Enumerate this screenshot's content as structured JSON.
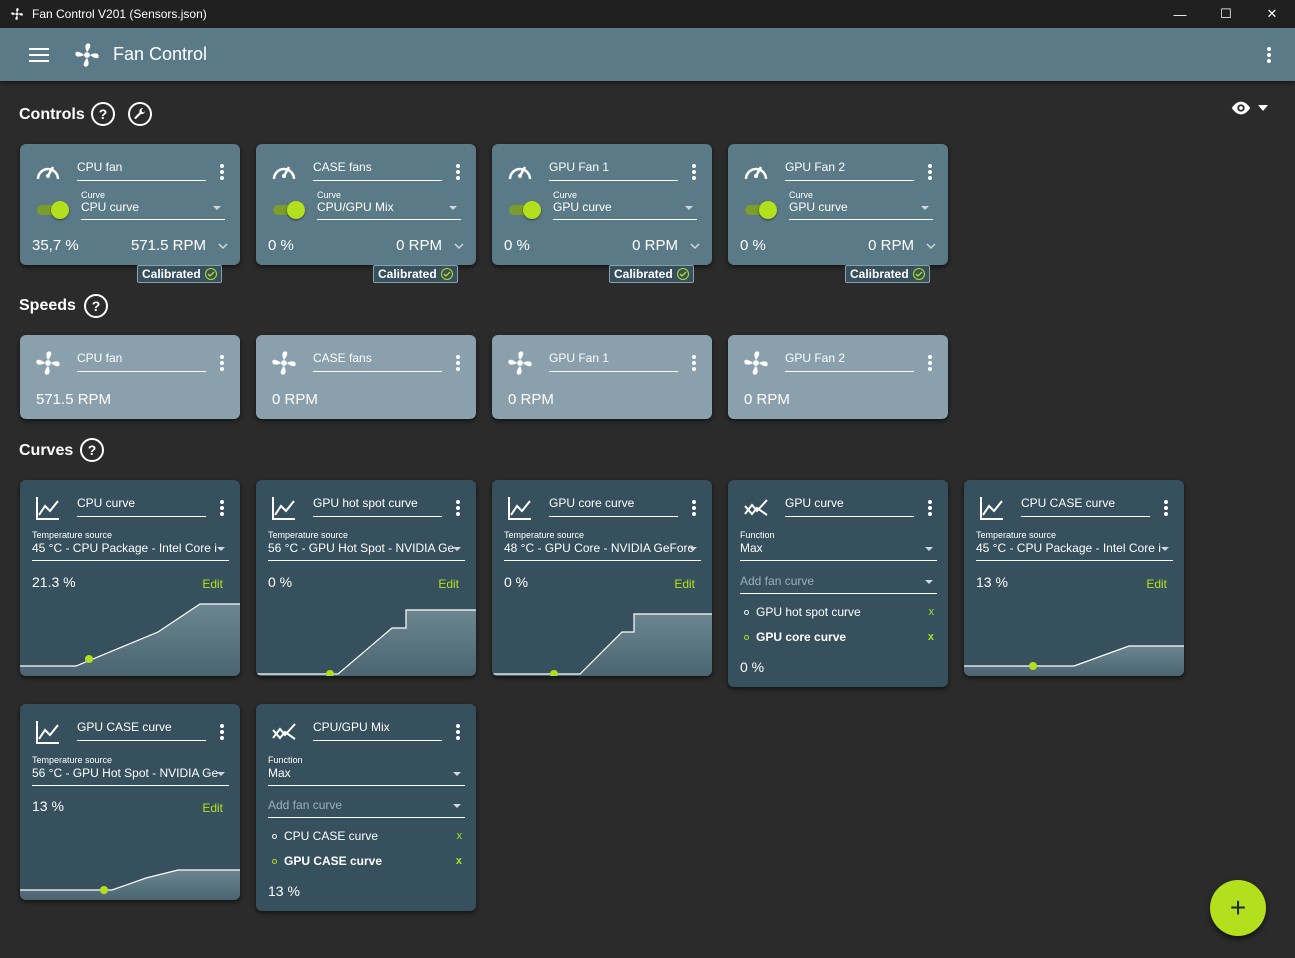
{
  "window": {
    "title": "Fan Control V201 (Sensors.json)",
    "minimize": "—",
    "maximize": "☐",
    "close": "✕"
  },
  "appbar": {
    "title": "Fan Control",
    "menu_icon": "hamburger-icon",
    "more_icon": "more-vertical-icon"
  },
  "sections": {
    "controls": "Controls",
    "speeds": "Speeds",
    "curves": "Curves",
    "help": "?"
  },
  "colors": {
    "accent": "#b3e01c",
    "appbar": "#5b7a88",
    "control_card": "#5b7a88",
    "speed_card": "#8aa1ad",
    "curve_card": "#37505d",
    "background": "#2b2b2b"
  },
  "controls": [
    {
      "name": "CPU fan",
      "curve_label": "Curve",
      "curve": "CPU curve",
      "percent": "35,7 %",
      "rpm": "571.5 RPM",
      "badge": "Calibrated",
      "enabled": true
    },
    {
      "name": "CASE fans",
      "curve_label": "Curve",
      "curve": "CPU/GPU Mix",
      "percent": "0 %",
      "rpm": "0 RPM",
      "badge": "Calibrated",
      "enabled": true
    },
    {
      "name": "GPU Fan 1",
      "curve_label": "Curve",
      "curve": "GPU curve",
      "percent": "0 %",
      "rpm": "0 RPM",
      "badge": "Calibrated",
      "enabled": true
    },
    {
      "name": "GPU Fan 2",
      "curve_label": "Curve",
      "curve": "GPU curve",
      "percent": "0 %",
      "rpm": "0 RPM",
      "badge": "Calibrated",
      "enabled": true
    }
  ],
  "speeds": [
    {
      "name": "CPU fan",
      "rpm": "571.5 RPM"
    },
    {
      "name": "CASE fans",
      "rpm": "0 RPM"
    },
    {
      "name": "GPU Fan 1",
      "rpm": "0 RPM"
    },
    {
      "name": "GPU Fan 2",
      "rpm": "0 RPM"
    }
  ],
  "curves": {
    "cpu_curve": {
      "name": "CPU curve",
      "source_label": "Temperature source",
      "source": "45 °C - CPU Package - Intel Core i",
      "percent": "21.3 %",
      "edit": "Edit"
    },
    "gpu_hot_spot_curve": {
      "name": "GPU hot spot curve",
      "source_label": "Temperature source",
      "source": "56 °C - GPU Hot Spot - NVIDIA Ge",
      "percent": "0 %",
      "edit": "Edit"
    },
    "gpu_core_curve": {
      "name": "GPU core curve",
      "source_label": "Temperature source",
      "source": "48 °C - GPU Core - NVIDIA GeForc",
      "percent": "0 %",
      "edit": "Edit"
    },
    "gpu_curve": {
      "name": "GPU curve",
      "function_label": "Function",
      "function": "Max",
      "add_placeholder": "Add fan curve",
      "items": [
        "GPU hot spot curve",
        "GPU core curve"
      ],
      "remove": "x",
      "percent": "0 %"
    },
    "cpu_case_curve": {
      "name": "CPU CASE curve",
      "source_label": "Temperature source",
      "source": "45 °C - CPU Package - Intel Core i",
      "percent": "13 %",
      "edit": "Edit"
    },
    "gpu_case_curve": {
      "name": "GPU CASE curve",
      "source_label": "Temperature source",
      "source": "56 °C - GPU Hot Spot - NVIDIA Ge",
      "percent": "13 %",
      "edit": "Edit"
    },
    "cpu_gpu_mix": {
      "name": "CPU/GPU Mix",
      "function_label": "Function",
      "function": "Max",
      "add_placeholder": "Add fan curve",
      "items": [
        "CPU CASE curve",
        "GPU CASE curve"
      ],
      "remove": "x",
      "percent": "13 %"
    }
  },
  "fab": {
    "label": "+"
  }
}
